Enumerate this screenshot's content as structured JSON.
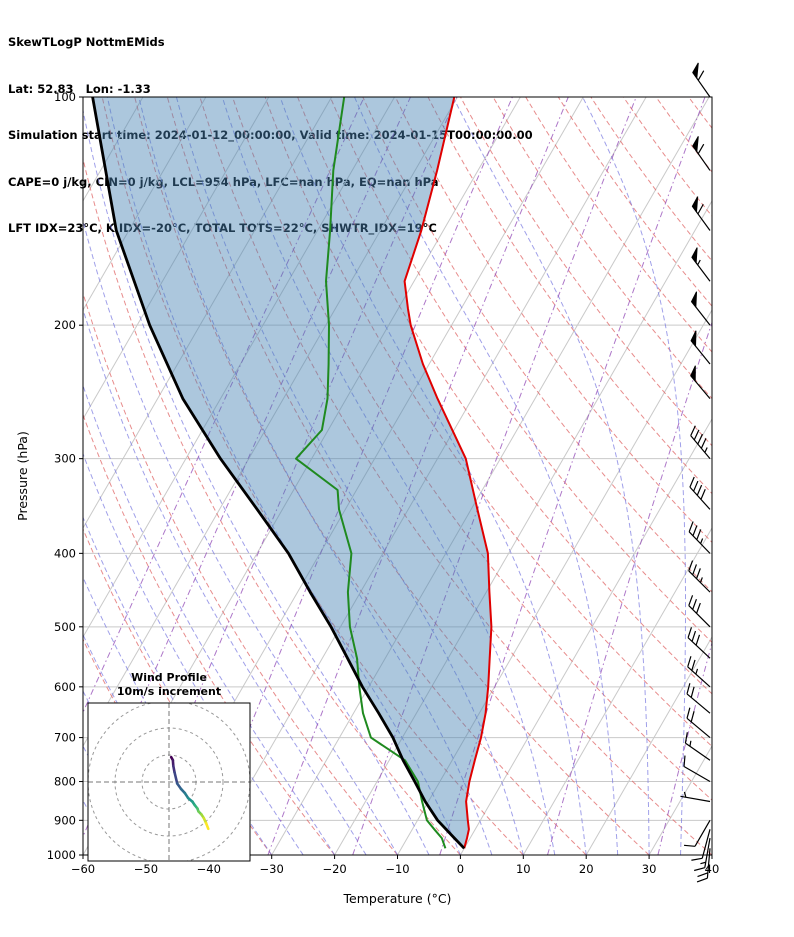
{
  "header": {
    "line1": "SkewTLogP NottmEMids",
    "line2": "Lat: 52.83   Lon: -1.33",
    "line3": "Simulation start time: 2024-01-12_00:00:00, Valid time: 2024-01-15T00:00:00.00",
    "line4": "CAPE=0 j/kg, CIN=0 j/kg, LCL=954 hPa, LFC=nan hPa, EQ=nan hPa",
    "line5": "LFT IDX=23°C, K IDX=-20°C, TOTAL TOTS=22°C, SHWTR_IDX=19°C"
  },
  "chart_data": {
    "type": "line",
    "subtype": "skewT-logP-sounding",
    "xlabel": "Temperature (°C)",
    "ylabel": "Pressure (hPa)",
    "xlim": [
      -60,
      40
    ],
    "ylim": [
      1000,
      100
    ],
    "x_ticks": [
      -60,
      -50,
      -40,
      -30,
      -20,
      -10,
      0,
      10,
      20,
      30,
      40
    ],
    "y_ticks": [
      100,
      200,
      300,
      400,
      500,
      600,
      700,
      800,
      900,
      1000
    ],
    "skew_ratio": 0.577,
    "grid": true,
    "series": [
      {
        "name": "temperature",
        "color": "#e00000",
        "pressure": [
          980,
          950,
          925,
          900,
          850,
          800,
          750,
          700,
          650,
          600,
          550,
          500,
          450,
          400,
          350,
          300,
          250,
          225,
          200,
          190,
          175,
          150,
          125,
          100
        ],
        "values": [
          0,
          -0.5,
          -1,
          -2,
          -4,
          -5.3,
          -6.4,
          -7.5,
          -9,
          -11,
          -13.4,
          -16,
          -19.5,
          -23.3,
          -29,
          -35.5,
          -45.5,
          -51,
          -56.5,
          -58.5,
          -61.5,
          -63.5,
          -66.5,
          -70.5
        ]
      },
      {
        "name": "dewpoint",
        "color": "#1f8a1f",
        "pressure": [
          980,
          950,
          925,
          900,
          850,
          800,
          750,
          700,
          650,
          600,
          550,
          500,
          450,
          400,
          350,
          330,
          300,
          275,
          250,
          225,
          200,
          175,
          150,
          125,
          100
        ],
        "values": [
          -3,
          -4.5,
          -6.5,
          -8.5,
          -11,
          -13.5,
          -17.5,
          -25,
          -28.5,
          -31.5,
          -34.5,
          -38.5,
          -42,
          -45,
          -51,
          -53,
          -62.5,
          -61,
          -63,
          -66,
          -69.5,
          -74,
          -78,
          -83,
          -88
        ]
      },
      {
        "name": "parcel",
        "color": "#000000",
        "pressure": [
          980,
          950,
          900,
          850,
          800,
          750,
          700,
          650,
          600,
          550,
          500,
          450,
          400,
          350,
          300,
          250,
          200,
          150,
          100
        ],
        "values": [
          0,
          -2.5,
          -6.8,
          -10.5,
          -14,
          -17.8,
          -21.5,
          -26,
          -31,
          -36,
          -41.5,
          -48,
          -55,
          -64,
          -74.5,
          -86,
          -98,
          -112,
          -128
        ]
      }
    ],
    "shading": {
      "between": [
        "parcel",
        "temperature"
      ],
      "color": "rgba(70,130,180,0.45)"
    },
    "background": {
      "isobars": {
        "color": "#c9c9c9",
        "values": [
          100,
          200,
          300,
          400,
          500,
          600,
          700,
          800,
          900,
          1000
        ]
      },
      "isotherms": {
        "color": "#c9c9c9",
        "values": [
          -150,
          -140,
          -130,
          -120,
          -110,
          -100,
          -90,
          -80,
          -70,
          -60,
          -50,
          -40,
          -30,
          -20,
          -10,
          0,
          10,
          20,
          30,
          40
        ]
      },
      "dry_adiabats": {
        "color": "#e06666",
        "theta_values": [
          -40,
          -30,
          -20,
          -10,
          0,
          10,
          20,
          30,
          40,
          50,
          60,
          70,
          80,
          90,
          100,
          110,
          120,
          130,
          140,
          150,
          160,
          170,
          180,
          190,
          200
        ]
      },
      "moist_adiabats": {
        "color": "#7878e0",
        "start_temps": [
          -55,
          -50,
          -45,
          -40,
          -35,
          -30,
          -25,
          -20,
          -15,
          -10,
          -5,
          0,
          5,
          10,
          15,
          20,
          25,
          30,
          35,
          40,
          45
        ]
      },
      "mixing_ratio": {
        "color": "#9955bb",
        "values_g_kg": [
          0.003,
          0.01,
          0.03,
          0.1,
          0.3,
          1,
          3,
          10,
          30
        ]
      }
    },
    "winds": {
      "pressure": [
        980,
        950,
        925,
        900,
        850,
        800,
        750,
        700,
        650,
        600,
        550,
        500,
        450,
        400,
        350,
        300,
        250,
        225,
        200,
        175,
        150,
        125,
        100
      ],
      "direction": [
        185,
        190,
        195,
        210,
        280,
        300,
        305,
        310,
        310,
        312,
        313,
        315,
        315,
        316,
        318,
        320,
        320,
        321,
        322,
        323,
        324,
        325,
        325
      ],
      "speed_kt": [
        18,
        16,
        12,
        8,
        6,
        10,
        14,
        18,
        22,
        25,
        28,
        30,
        33,
        36,
        40,
        44,
        48,
        50,
        52,
        55,
        58,
        60,
        62
      ]
    },
    "hodograph": {
      "title_line1": "Wind Profile",
      "title_line2": "10m/s increment",
      "ring_interval_ms": 10,
      "max_level_hpa": 300,
      "viridis": [
        [
          68,
          1,
          84
        ],
        [
          71,
          44,
          122
        ],
        [
          59,
          81,
          139
        ],
        [
          44,
          113,
          142
        ],
        [
          33,
          144,
          141
        ],
        [
          39,
          173,
          129
        ],
        [
          92,
          200,
          99
        ],
        [
          170,
          220,
          50
        ],
        [
          253,
          231,
          37
        ]
      ]
    }
  }
}
